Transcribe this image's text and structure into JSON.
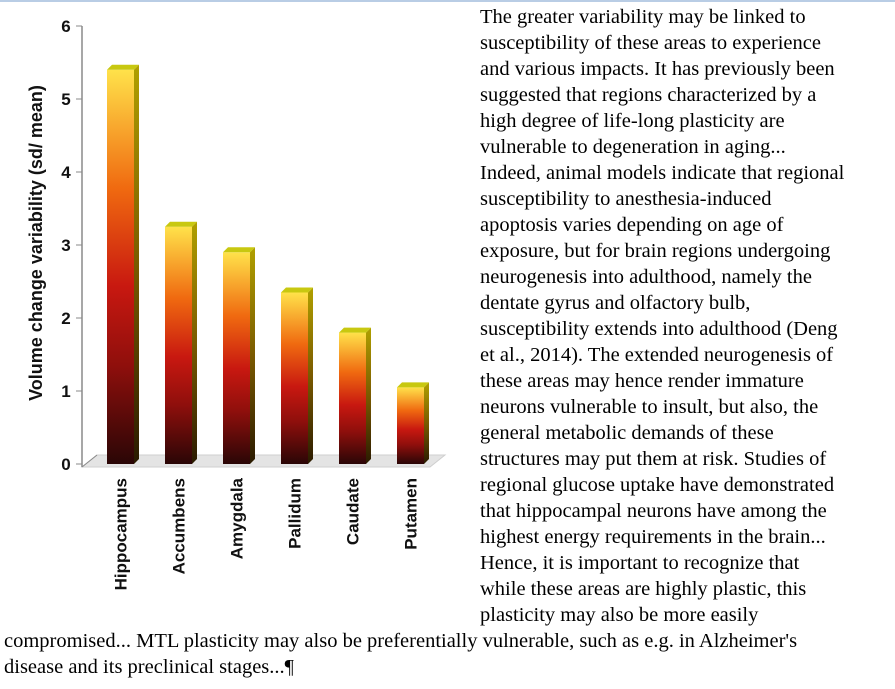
{
  "chart_data": {
    "type": "bar",
    "title": "",
    "xlabel": "",
    "ylabel": "Volume change variability (sd/ mean)",
    "categories": [
      "Hippocampus",
      "Accumbens",
      "Amygdala",
      "Pallidum",
      "Caudate",
      "Putamen"
    ],
    "values": [
      5.4,
      3.25,
      2.9,
      2.35,
      1.8,
      1.05
    ],
    "yticks": [
      "0",
      "1",
      "2",
      "3",
      "4",
      "5",
      "6"
    ],
    "ylim": [
      0,
      6
    ],
    "grid": false,
    "style": "3d bars with dark-red to yellow vertical gradient"
  },
  "colors": {
    "bar_bottom": "#2a0606",
    "bar_mid_low": "#c81810",
    "bar_mid": "#f06a10",
    "bar_top": "#ffe24a",
    "bar_cap": "#c8c810",
    "bar_side": "#8a7a00",
    "floor": "#e4e4e4"
  },
  "text": {
    "lines_right": [
      "The greater variability may be linked to",
      "susceptibility of these areas to experience",
      "and various impacts. It has previously been",
      "suggested that regions characterized by a",
      "high degree of life-long plasticity are",
      "vulnerable to degeneration in aging...",
      "Indeed, animal models indicate that regional",
      "susceptibility to anesthesia-induced",
      "apoptosis varies depending on age of",
      "exposure, but for brain regions undergoing",
      "neurogenesis into adulthood, namely the",
      "dentate gyrus and olfactory bulb,",
      "susceptibility extends into adulthood (Deng",
      "et al., 2014). The extended neurogenesis of",
      "these areas may hence render immature",
      "neurons vulnerable to insult, but also, the",
      "general metabolic demands of these",
      "structures may put them at risk. Studies of",
      "regional glucose uptake have demonstrated",
      "that hippocampal neurons have among the",
      "highest energy requirements in the brain...",
      "Hence, it is important to recognize that",
      "while these areas are highly plastic, this",
      "plasticity may also be more easily"
    ],
    "lines_full": [
      "compromised... MTL plasticity may also be preferentially vulnerable, such as e.g. in Alzheimer's",
      "disease and its preclinical stages...¶"
    ]
  }
}
